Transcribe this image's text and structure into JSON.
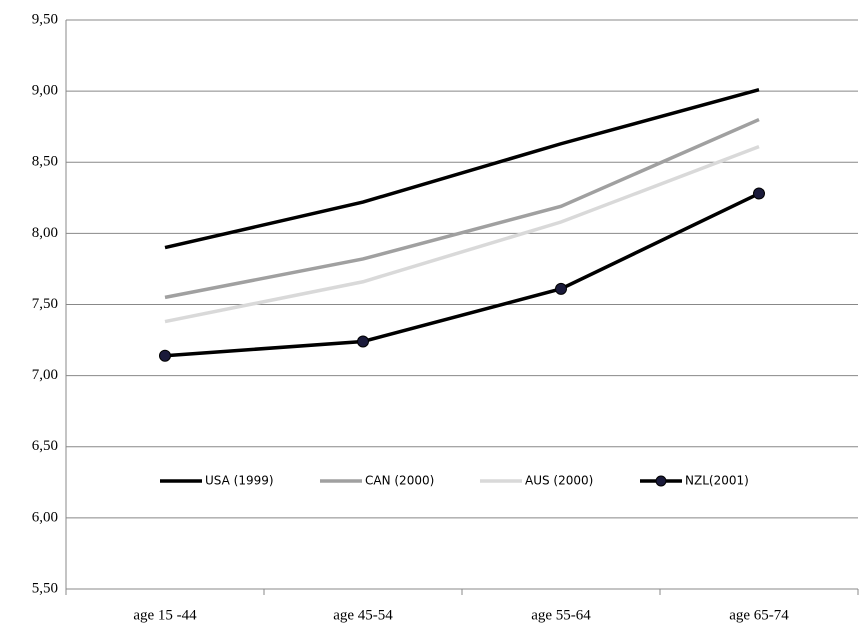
{
  "chart_data": {
    "type": "line",
    "categories": [
      "age 15 -44",
      "age 45-54",
      "age 55-64",
      "age 65-74"
    ],
    "series": [
      {
        "name": "USA (1999)",
        "color": "#000000",
        "values": [
          7.9,
          8.22,
          8.63,
          9.01
        ]
      },
      {
        "name": "CAN (2000)",
        "color": "#a0a0a0",
        "values": [
          7.55,
          7.82,
          8.19,
          8.8
        ]
      },
      {
        "name": "AUS (2000)",
        "color": "#d9d9d9",
        "values": [
          7.38,
          7.66,
          8.08,
          8.61
        ]
      },
      {
        "name": "NZL(2001)",
        "color": "#000000",
        "marker": true,
        "marker_color": "#1a1a3a",
        "values": [
          7.14,
          7.24,
          7.61,
          8.28
        ]
      }
    ],
    "ylim": [
      5.5,
      9.5
    ],
    "yticks": [
      {
        "value": 5.5,
        "label": "5,50"
      },
      {
        "value": 6,
        "label": "6,00"
      },
      {
        "value": 6.5,
        "label": "6,50"
      },
      {
        "value": 7,
        "label": "7,00"
      },
      {
        "value": 7.5,
        "label": "7,50"
      },
      {
        "value": 8,
        "label": "8,00"
      },
      {
        "value": 8.5,
        "label": "8,50"
      },
      {
        "value": 9,
        "label": "9,00"
      },
      {
        "value": 9.5,
        "label": "9,50"
      }
    ],
    "grid": true,
    "legend": "inside-bottom"
  }
}
